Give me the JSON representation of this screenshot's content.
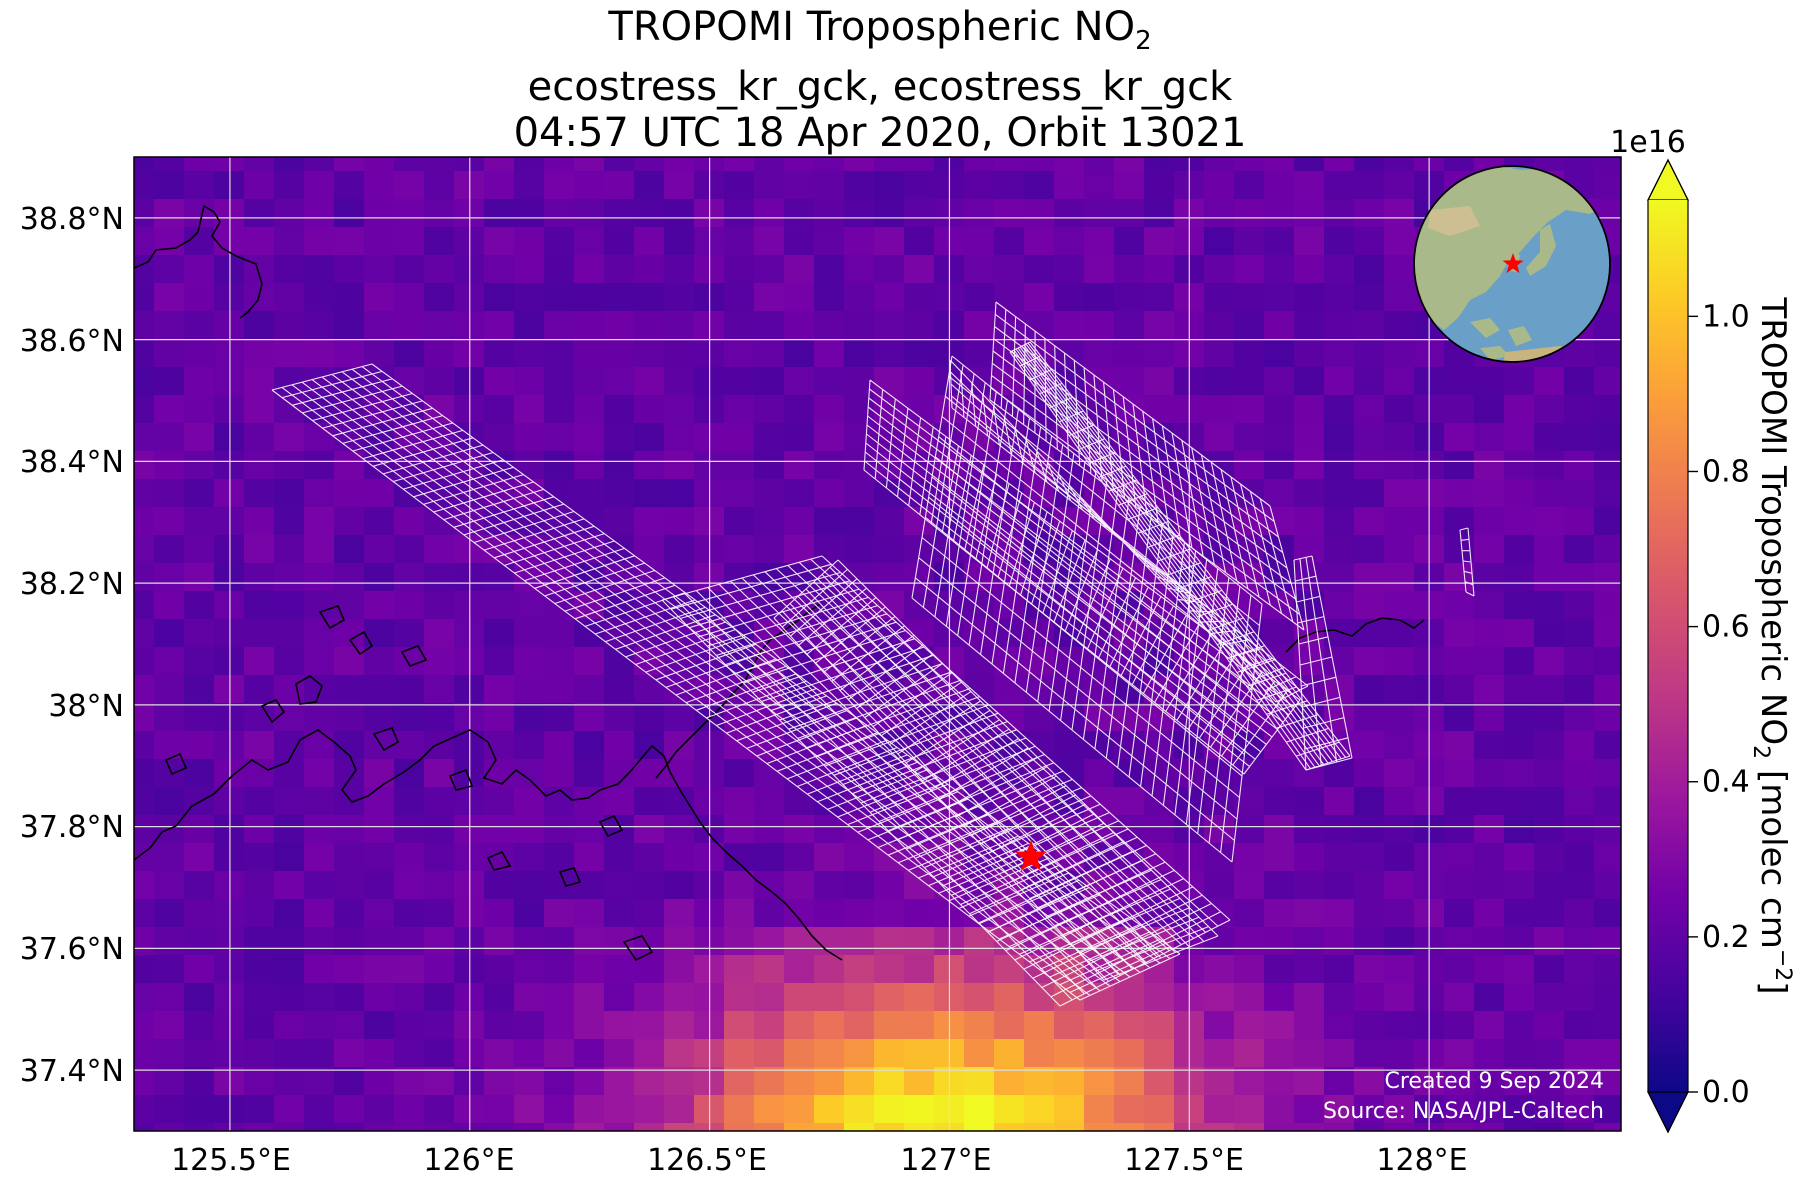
{
  "title": {
    "line1_main": "TROPOMI Tropospheric NO",
    "line1_sub": "2",
    "line2": "ecostress_kr_gck, ecostress_kr_gck",
    "line3": "04:57 UTC 18 Apr 2020, Orbit 13021"
  },
  "map": {
    "lat_ticks": [
      "38.8°N",
      "38.6°N",
      "38.4°N",
      "38.2°N",
      "38°N",
      "37.8°N",
      "37.6°N",
      "37.4°N"
    ],
    "lon_ticks": [
      "125.5°E",
      "126°E",
      "126.5°E",
      "127°E",
      "127.5°E",
      "128°E"
    ],
    "lat_values": [
      38.8,
      38.6,
      38.4,
      38.2,
      38.0,
      37.8,
      37.6,
      37.4
    ],
    "lon_values": [
      125.5,
      126.0,
      126.5,
      127.0,
      127.5,
      128.0
    ],
    "extent": {
      "lon_min": 125.3,
      "lon_max": 128.4,
      "lat_min": 37.3,
      "lat_max": 38.9
    },
    "target_marker": {
      "lon": 127.17,
      "lat": 37.75,
      "symbol": "star",
      "color": "#ff0000"
    },
    "credit_line1": "Created 9 Sep 2024",
    "credit_line2": "Source: NASA/JPL-Caltech",
    "colors": {
      "land_border": "#000000",
      "gridline": "#dddddd",
      "footprint": "#ffffff",
      "marker": "#ff0000"
    }
  },
  "inset_globe": {
    "marker_color": "#ff0000",
    "ocean_color": "#6a9fc8",
    "land_color": "#a9b98a"
  },
  "colorbar": {
    "label_main": "TROPOMI Tropospheric NO",
    "label_sub": "2",
    "label_units": " [molec cm",
    "label_exp": "−2",
    "label_close": "]",
    "exponent": "1e16",
    "ticks": [
      "0.0",
      "0.2",
      "0.4",
      "0.6",
      "0.8",
      "1.0"
    ],
    "tick_values": [
      0.0,
      0.2,
      0.4,
      0.6,
      0.8,
      1.0
    ],
    "range": [
      0.0,
      1.15
    ],
    "colormap": "plasma",
    "stops": [
      "#0d0887",
      "#46039f",
      "#7201a8",
      "#9c179e",
      "#bd3786",
      "#d8576b",
      "#ed7953",
      "#fb9f3a",
      "#fdca26",
      "#f0f921"
    ]
  }
}
